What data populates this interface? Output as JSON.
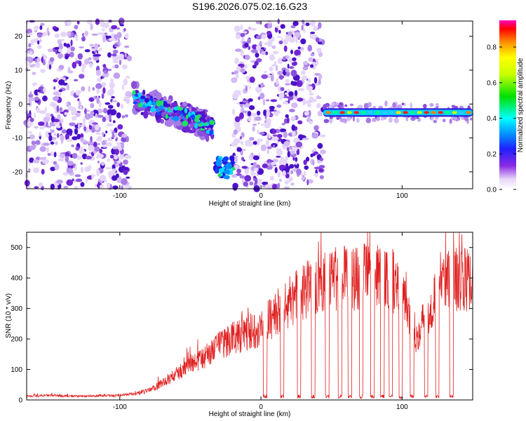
{
  "title": "S196.2026.075.02.16.G23",
  "chart_data": [
    {
      "type": "heatmap",
      "title": "S196.2026.075.02.16.G23",
      "xlabel": "Height of straight line (km)",
      "ylabel": "Frequency (Hz)",
      "xlim": [
        -166,
        150
      ],
      "ylim": [
        -25,
        24.5
      ],
      "xticks": [
        -100,
        0,
        100
      ],
      "yticks": [
        20,
        10,
        0,
        -10,
        -20
      ],
      "colorbar": {
        "label": "Normalized spectral amplitude",
        "range": [
          0,
          0.95
        ],
        "ticks": [
          "0.0",
          "0.2",
          "0.4",
          "0.6",
          "0.8"
        ]
      },
      "features": [
        {
          "name": "background noise",
          "x": [
            -166,
            -93
          ],
          "y": [
            -25,
            24.5
          ],
          "amplitude": 0.05
        },
        {
          "name": "descending trace",
          "x": [
            -90,
            -34
          ],
          "y_start": 2,
          "y_end": -7,
          "amplitude": 0.35
        },
        {
          "name": "isolated patch",
          "x": [
            -32,
            -19
          ],
          "y": [
            -22,
            -16
          ],
          "amplitude": 0.3
        },
        {
          "name": "background noise",
          "x": [
            -20,
            44
          ],
          "y": [
            -25,
            24.5
          ],
          "amplitude": 0.05
        },
        {
          "name": "steady line",
          "x": [
            44,
            150
          ],
          "y_center": -2.5,
          "amplitude": 0.95
        }
      ]
    },
    {
      "type": "line",
      "xlabel": "Height of straight line (km)",
      "ylabel": "SNR (10 * v/v)",
      "xlim": [
        -166,
        150
      ],
      "ylim": [
        0,
        550
      ],
      "xticks": [
        -100,
        0,
        100
      ],
      "yticks": [
        0,
        100,
        200,
        300,
        400,
        500
      ],
      "series": [
        {
          "name": "SNR",
          "color": "#e02020",
          "x": [
            -166,
            -150,
            -130,
            -110,
            -100,
            -90,
            -80,
            -70,
            -60,
            -50,
            -40,
            -30,
            -20,
            -10,
            0,
            10,
            20,
            30,
            40,
            50,
            60,
            70,
            80,
            90,
            100,
            110,
            120,
            130,
            140,
            150
          ],
          "values": [
            12,
            15,
            12,
            14,
            15,
            20,
            30,
            55,
            85,
            115,
            140,
            175,
            205,
            220,
            240,
            280,
            320,
            360,
            380,
            390,
            400,
            405,
            400,
            395,
            380,
            210,
            310,
            410,
            400,
            380
          ],
          "dropouts_x": [
            3,
            15,
            27,
            37,
            47,
            56,
            63,
            71,
            79,
            86,
            92,
            99,
            107,
            117,
            125,
            135
          ],
          "dropout_level": 5
        }
      ]
    }
  ]
}
